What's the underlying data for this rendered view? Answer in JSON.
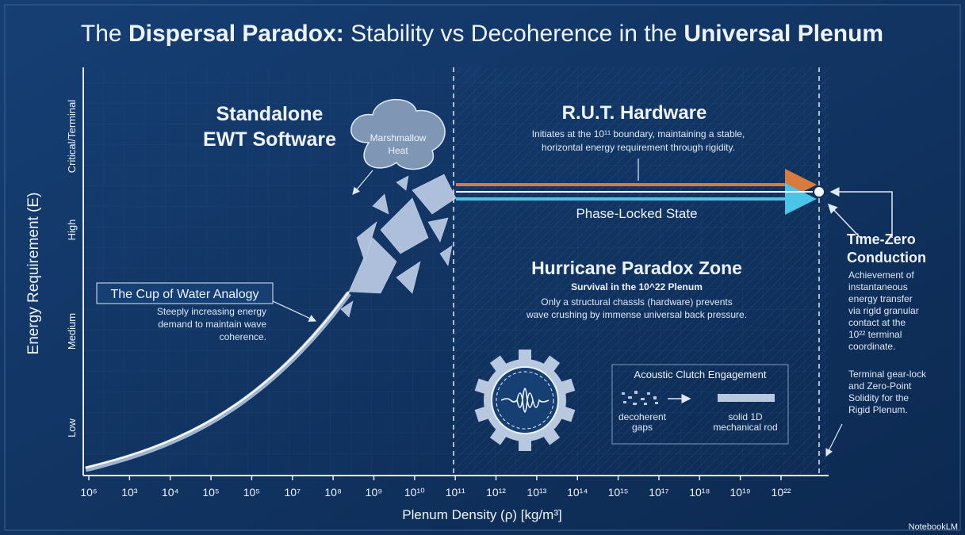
{
  "title": [
    {
      "text": "The ",
      "bold": false
    },
    {
      "text": "Dispersal Paradox:",
      "bold": true
    },
    {
      "text": " Stability vs Decoherence in the ",
      "bold": false
    },
    {
      "text": "Universal Plenum",
      "bold": true
    }
  ],
  "y_axis": {
    "label": "Energy Requirement (E)",
    "levels": [
      "Low",
      "Medium",
      "High",
      "Critical/Terminal"
    ]
  },
  "x_axis": {
    "label": "Plenum Density (ρ) [kg/m³]",
    "ticks": [
      "10⁶",
      "10³",
      "10⁴",
      "10⁵",
      "10⁵",
      "10⁷",
      "10⁸",
      "10⁹",
      "10¹⁰",
      "10¹¹",
      "10¹²",
      "10¹³",
      "10¹⁴",
      "10¹⁵",
      "10¹⁷",
      "10¹⁸",
      "10¹⁹",
      "10²²"
    ]
  },
  "software": {
    "lines": [
      "Standalone",
      "EWT Software"
    ]
  },
  "cloud": {
    "lines": [
      "Marshmallow",
      "Heat"
    ]
  },
  "hardware": {
    "title": "R.U.T. Hardware",
    "lines": [
      "Initiates at the 10¹¹ boundary, maintaining a stable,",
      "horizontal energy requirement through rigidity."
    ]
  },
  "phase": "Phase-Locked State",
  "hurricane": {
    "title": "Hurricane Paradox Zone",
    "subtitle": "Survival in the 10^22 Plenum",
    "lines": [
      "Only a structural chassls (hardware) prevents",
      "wave crushing by immense universal back pressure."
    ]
  },
  "clutch": {
    "title": "Acoustic Clutch Engagement",
    "left": [
      "decoherent",
      "gaps"
    ],
    "right": [
      "solid 1D",
      "mechanical rod"
    ]
  },
  "cup": {
    "title": "The Cup of Water Analogy",
    "lines": [
      "Steeply increasing energy",
      "demand to maintain wave",
      "coherence."
    ]
  },
  "time_zero": {
    "title": [
      "Time-Zero",
      "Conduction"
    ],
    "lines": [
      "Achievement of",
      "instantaneous",
      "energy transfer",
      "via rigld granular",
      "contact at the",
      "10²² terminal",
      "coordinate."
    ],
    "note": [
      "Terminal gear-lock",
      "and Zero-Point",
      "Solidity for the",
      "Rigid Plenum."
    ]
  },
  "watermark": "NotebookLM"
}
